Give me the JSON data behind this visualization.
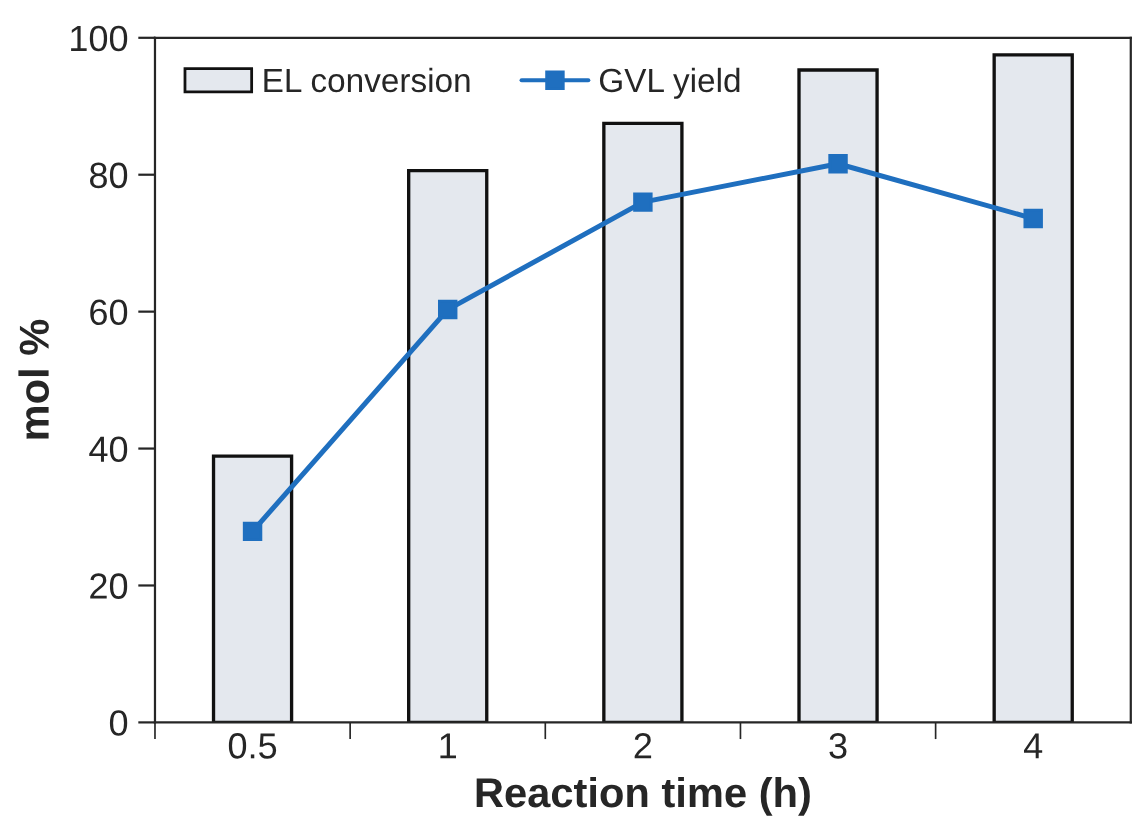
{
  "chart_data": {
    "type": "bar",
    "xlabel": "Reaction time (h)",
    "ylabel": "mol %",
    "categories": [
      "0.5",
      "1",
      "2",
      "3",
      "4"
    ],
    "series": [
      {
        "name": "EL conversion",
        "color": "#e4e8ee",
        "values": [
          38.9,
          80.6,
          87.5,
          95.3,
          97.5
        ]
      },
      {
        "name": "GVL yield",
        "type": "line",
        "color": "#1f6fbf",
        "values": [
          27.9,
          60.3,
          76.0,
          81.6,
          73.6
        ]
      }
    ],
    "ylim": [
      0,
      100
    ],
    "yticks": [
      0,
      20,
      40,
      60,
      80,
      100
    ],
    "grid": false,
    "legend": "top left",
    "marker": "square",
    "line_style": "solid"
  }
}
